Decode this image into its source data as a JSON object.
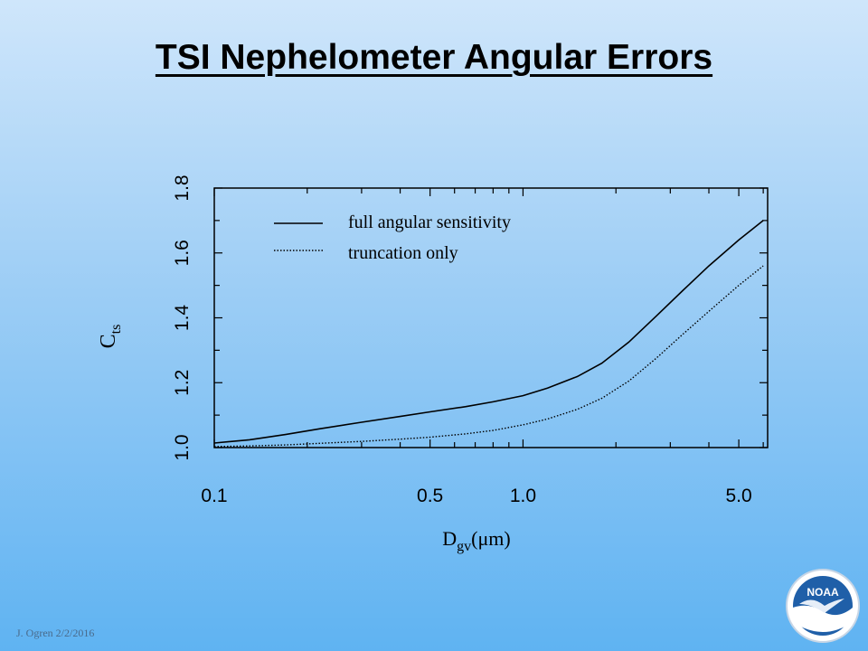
{
  "slide": {
    "title": "TSI Nephelometer Angular Errors",
    "footer": "J. Ogren  2/2/2016",
    "logo_text": "NOAA"
  },
  "chart_data": {
    "type": "line",
    "title": "",
    "xlabel": "D",
    "xlabel_sub": "gv",
    "xlabel_unit": "(μm)",
    "ylabel": "C",
    "ylabel_sub": "ts",
    "x_scale": "log",
    "xlim": [
      0.1,
      6.2
    ],
    "ylim": [
      1.0,
      1.8
    ],
    "x_tick_labels": [
      {
        "value": 0.1,
        "label": "0.1"
      },
      {
        "value": 0.5,
        "label": "0.5"
      },
      {
        "value": 1.0,
        "label": "1.0"
      },
      {
        "value": 5.0,
        "label": "5.0"
      }
    ],
    "y_tick_labels": [
      {
        "value": 1.0,
        "label": "1.0"
      },
      {
        "value": 1.2,
        "label": "1.2"
      },
      {
        "value": 1.4,
        "label": "1.4"
      },
      {
        "value": 1.6,
        "label": "1.6"
      },
      {
        "value": 1.8,
        "label": "1.8"
      }
    ],
    "legend_position": "top-left",
    "series": [
      {
        "name": "full angular sensitivity",
        "style": "solid",
        "x": [
          0.1,
          0.13,
          0.17,
          0.22,
          0.3,
          0.4,
          0.5,
          0.65,
          0.8,
          1.0,
          1.2,
          1.5,
          1.8,
          2.2,
          2.7,
          3.3,
          4.0,
          5.0,
          6.0
        ],
        "y": [
          1.014,
          1.024,
          1.04,
          1.058,
          1.078,
          1.096,
          1.11,
          1.126,
          1.141,
          1.16,
          1.183,
          1.219,
          1.26,
          1.325,
          1.405,
          1.485,
          1.56,
          1.64,
          1.7
        ]
      },
      {
        "name": "truncation only",
        "style": "dotted",
        "x": [
          0.1,
          0.13,
          0.17,
          0.22,
          0.3,
          0.4,
          0.5,
          0.65,
          0.8,
          1.0,
          1.2,
          1.5,
          1.8,
          2.2,
          2.7,
          3.3,
          4.0,
          5.0,
          6.0
        ],
        "y": [
          1.003,
          1.005,
          1.008,
          1.013,
          1.019,
          1.026,
          1.032,
          1.042,
          1.053,
          1.07,
          1.088,
          1.118,
          1.152,
          1.205,
          1.275,
          1.35,
          1.42,
          1.5,
          1.56
        ]
      }
    ]
  }
}
